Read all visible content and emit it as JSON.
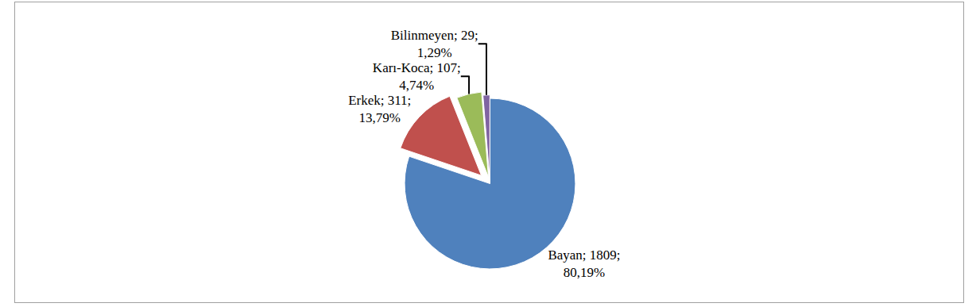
{
  "chart_data": {
    "type": "pie",
    "categories": [
      "Bayan",
      "Erkek",
      "Karı-Koca",
      "Bilinmeyen"
    ],
    "values": [
      1809,
      311,
      107,
      29
    ],
    "value_labels": [
      "Bayan; 1809; 80,19%",
      "Erkek; 311; 13,79%",
      "Karı-Koca; 107; 4,74%",
      "Bilinmeyen; 29; 1,29%"
    ],
    "colors": [
      "#4f81bd",
      "#c0504d",
      "#9bbb59",
      "#8064a2"
    ],
    "data_labels": true
  }
}
